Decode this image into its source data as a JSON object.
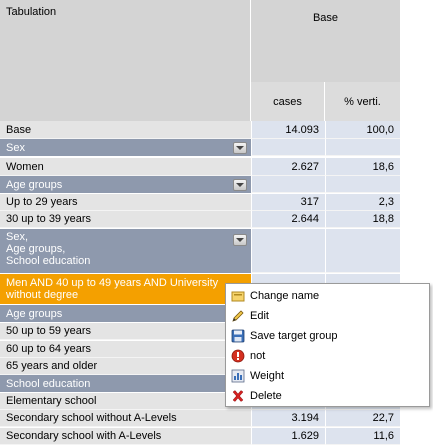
{
  "header": {
    "tabulation_label": "Tabulation",
    "base_label": "Base",
    "col_cases": "cases",
    "col_percent": "% verti."
  },
  "rows": {
    "base": {
      "label": "Base",
      "cases": "14.093",
      "pct": "100,0"
    },
    "sex_section": "Sex",
    "women": {
      "label": "Women",
      "cases": "2.627",
      "pct": "18,6"
    },
    "age_section": "Age groups",
    "age_up29": {
      "label": "Up to 29 years",
      "cases": "317",
      "pct": "2,3"
    },
    "age_30_39": {
      "label": "30 up to 39 years",
      "cases": "2.644",
      "pct": "18,8"
    },
    "multi_line1": "Sex,",
    "multi_line2": "Age groups,",
    "multi_line3": "School education",
    "selected_line1": "Men AND 40 up to 49 years AND University",
    "selected_line2": "without degree",
    "age_section2": "Age groups",
    "age_50_59": {
      "label": "50 up to 59 years"
    },
    "age_60_64": {
      "label": "60 up to 64 years"
    },
    "age_65": {
      "label": "65 years and older"
    },
    "school_section": "School education",
    "elementary": {
      "label": "Elementary school"
    },
    "secondary_no_alevel": {
      "label": "Secondary school without A-Levels",
      "cases": "3.194",
      "pct": "22,7"
    },
    "secondary_alevel": {
      "label": "Secondary school with A-Levels",
      "cases": "1.629",
      "pct": "11,6"
    }
  },
  "context_menu": {
    "items": [
      {
        "label": "Change name",
        "icon": "rename-icon"
      },
      {
        "label": "Edit",
        "icon": "pencil-icon"
      },
      {
        "label": "Save target group",
        "icon": "floppy-disk-icon"
      },
      {
        "label": "not",
        "icon": "not-icon"
      },
      {
        "label": "Weight",
        "icon": "weight-icon"
      },
      {
        "label": "Delete",
        "icon": "delete-icon"
      }
    ]
  },
  "colors": {
    "section_header": "#8e99ad",
    "selected_row": "#f4a000",
    "numeric_cell": "#dde3ee",
    "label_cell": "#e4e4e4",
    "delete_icon": "#d42020",
    "not_icon": "#d43020"
  }
}
